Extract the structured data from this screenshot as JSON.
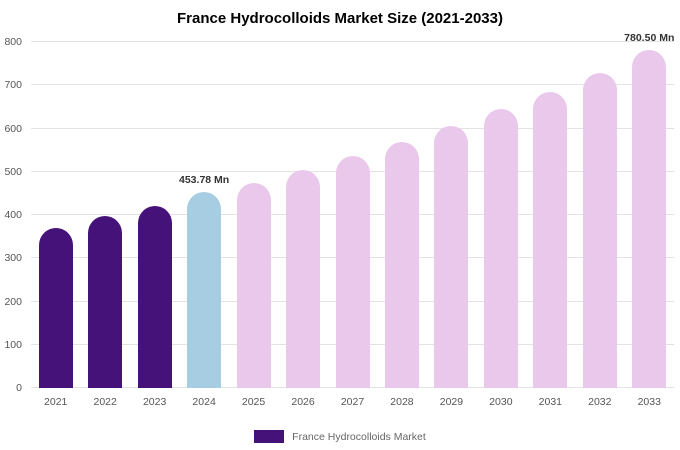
{
  "chart_data": {
    "type": "bar",
    "title": "France Hydrocolloids Market Size (2021-2033)",
    "categories": [
      "2021",
      "2022",
      "2023",
      "2024",
      "2025",
      "2026",
      "2027",
      "2028",
      "2029",
      "2030",
      "2031",
      "2032",
      "2033"
    ],
    "values": [
      370,
      397,
      420,
      453.78,
      475,
      505,
      537,
      569,
      605,
      644,
      685,
      728,
      780.5
    ],
    "ylim": [
      0,
      800
    ],
    "yticks": [
      0,
      100,
      200,
      300,
      400,
      500,
      600,
      700,
      800
    ],
    "grid": true,
    "xlabel": "",
    "ylabel": "",
    "legend": {
      "label": "France Hydrocolloids Market",
      "position": "bottom"
    },
    "annotations": [
      {
        "category": "2024",
        "text": "453.78 Mn"
      },
      {
        "category": "2033",
        "text": "780.50 Mn"
      }
    ],
    "colors": {
      "historical": "#45127a",
      "current": "#a6cde2",
      "forecast": "#eac8ec",
      "legend_swatch": "#45127a"
    },
    "color_by_index": [
      "historical",
      "historical",
      "historical",
      "current",
      "forecast",
      "forecast",
      "forecast",
      "forecast",
      "forecast",
      "forecast",
      "forecast",
      "forecast",
      "forecast"
    ]
  }
}
